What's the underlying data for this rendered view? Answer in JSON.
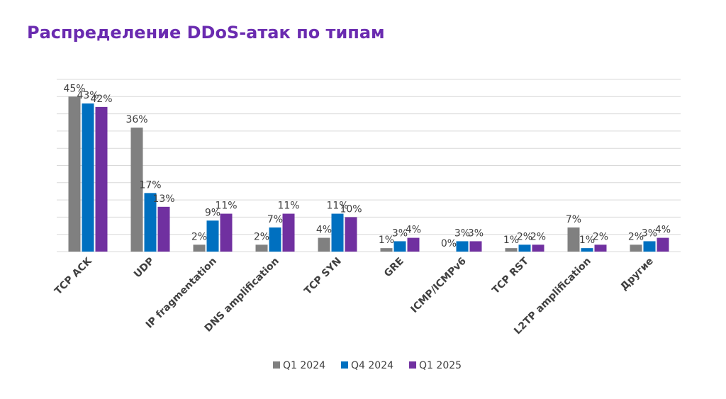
{
  "chart_data": {
    "type": "bar",
    "title": "Распределение DDoS-атак по типам",
    "categories": [
      "TCP ACK",
      "UDP",
      "IP fragmentation",
      "DNS amplification",
      "TCP SYN",
      "GRE",
      "ICMP/ICMPv6",
      "TCP RST",
      "L2TP amplification",
      "Другие"
    ],
    "series": [
      {
        "name": "Q1 2024",
        "color": "#808080",
        "values": [
          45,
          36,
          2,
          2,
          4,
          1,
          0,
          1,
          7,
          2
        ],
        "value_labels": [
          "45%",
          "36%",
          "2%",
          "2%",
          "4%",
          "1%",
          "0%",
          "1%",
          "7%",
          "2%"
        ]
      },
      {
        "name": "Q4 2024",
        "color": "#0070c0",
        "values": [
          43,
          17,
          9,
          7,
          11,
          3,
          3,
          2,
          1,
          3
        ],
        "value_labels": [
          "43%",
          "17%",
          "9%",
          "7%",
          "11%",
          "3%",
          "3%",
          "2%",
          "1%",
          "3%"
        ]
      },
      {
        "name": "Q1 2025",
        "color": "#7030a0",
        "values": [
          42,
          13,
          11,
          11,
          10,
          4,
          3,
          2,
          2,
          4
        ],
        "value_labels": [
          "42%",
          "13%",
          "11%",
          "11%",
          "10%",
          "4%",
          "3%",
          "2%",
          "2%",
          "4%"
        ]
      }
    ],
    "ylim": [
      0,
      50
    ],
    "yticks": [
      0,
      5,
      10,
      15,
      20,
      25,
      30,
      35,
      40,
      45,
      50
    ],
    "grid": true,
    "legend": "bottom"
  }
}
